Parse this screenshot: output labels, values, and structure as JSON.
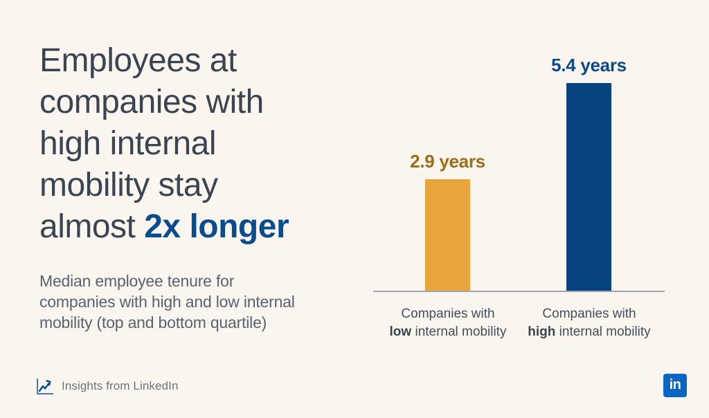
{
  "headline": {
    "lines": [
      "Employees at",
      "companies with",
      "high internal",
      "mobility stay"
    ],
    "final_line": {
      "prefix": "almost ",
      "accent": "2x longer"
    }
  },
  "subtitle": {
    "lines": [
      "Median employee tenure for",
      "companies with high and low internal",
      "mobility (top and bottom quartile)"
    ]
  },
  "chart_data": {
    "type": "bar",
    "unit": "years",
    "categories": [
      "Companies with low internal mobility",
      "Companies with high internal mobility"
    ],
    "values": [
      2.9,
      5.4
    ],
    "value_labels": [
      "2.9 years",
      "5.4 years"
    ],
    "bar_colors": [
      "#E8A43D",
      "#07437F"
    ],
    "value_label_colors": [
      "#9A6E18",
      "#0B4A85"
    ],
    "category_labels": [
      {
        "line1": "Companies with",
        "bold_word": "low",
        "remainder": " internal mobility"
      },
      {
        "line1": "Companies with",
        "bold_word": "high",
        "remainder": " internal mobility"
      }
    ],
    "ylim": [
      0,
      5.8
    ],
    "gridlines": false,
    "axis_line": true,
    "legend": "none",
    "title": "Employees at companies with high internal mobility stay almost 2x longer",
    "xlabel": "",
    "ylabel": ""
  },
  "footer": {
    "source_label": "Insights from LinkedIn",
    "source_icon": "trend-line-chart-icon",
    "linkedin_logo_text": "in"
  },
  "colors": {
    "background": "#FAF5EE",
    "headline_text": "#3B4552",
    "accent_blue": "#0A4C8C",
    "subtitle_text": "#57636E",
    "category_text": "#414D59",
    "axis_line": "#98A5AF",
    "bar_low": "#E8A43D",
    "bar_high": "#07437F",
    "value_label_low": "#9A6E18",
    "value_label_high": "#0B4A85",
    "footer_text": "#667380",
    "linkedin_blue": "#0A66C2"
  }
}
